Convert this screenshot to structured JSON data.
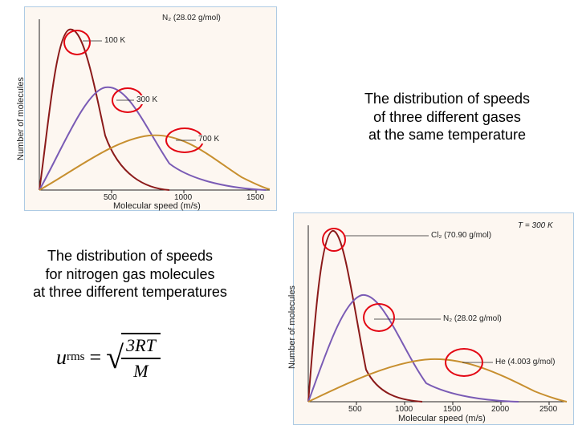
{
  "captions": {
    "top_right": "The distribution of speeds\nof three different gases\nat the same temperature",
    "mid_left": "The distribution of speeds\nfor nitrogen gas molecules\nat three different temperatures"
  },
  "formula": {
    "lhs_var": "u",
    "lhs_sub": "rms",
    "numerator": "3RT",
    "denominator": "M"
  },
  "chart_top": {
    "type": "line",
    "title": "N₂ (28.02 g/mol)",
    "x_label": "Molecular speed (m/s)",
    "y_label": "Number of molecules",
    "x_ticks": [
      "500",
      "1000",
      "1500"
    ],
    "background_color": "#fdf7f1",
    "border_color": "#aecbe4",
    "series": [
      {
        "label": "100 K",
        "color": "#8b1a1a",
        "ellipse_cx": 65,
        "ellipse_cy": 45,
        "label_x": 98,
        "label_y": 38
      },
      {
        "label": "300 K",
        "color": "#7a5bb5",
        "ellipse_cx": 128,
        "ellipse_cy": 120,
        "label_x": 138,
        "label_y": 113
      },
      {
        "label": "700 K",
        "color": "#c78f2f",
        "ellipse_cx": 198,
        "ellipse_cy": 168,
        "label_x": 215,
        "label_y": 162
      }
    ]
  },
  "chart_bottom": {
    "type": "line",
    "title_right": "T = 300 K",
    "x_label": "Molecular speed (m/s)",
    "y_label": "Number of molecules",
    "x_ticks": [
      "500",
      "1000",
      "1500",
      "2000",
      "2500"
    ],
    "background_color": "#fdf7f1",
    "border_color": "#aecbe4",
    "series": [
      {
        "label": "Cl₂ (70.90 g/mol)",
        "color": "#8b1a1a",
        "ellipse_cx": 55,
        "ellipse_cy": 38,
        "label_x": 170,
        "label_y": 23
      },
      {
        "label": "N₂ (28.02 g/mol)",
        "color": "#7a5bb5",
        "ellipse_cx": 112,
        "ellipse_cy": 130,
        "label_x": 185,
        "label_y": 128
      },
      {
        "label": "He (4.003 g/mol)",
        "color": "#c78f2f",
        "ellipse_cx": 220,
        "ellipse_cy": 190,
        "label_x": 250,
        "label_y": 180
      }
    ]
  }
}
